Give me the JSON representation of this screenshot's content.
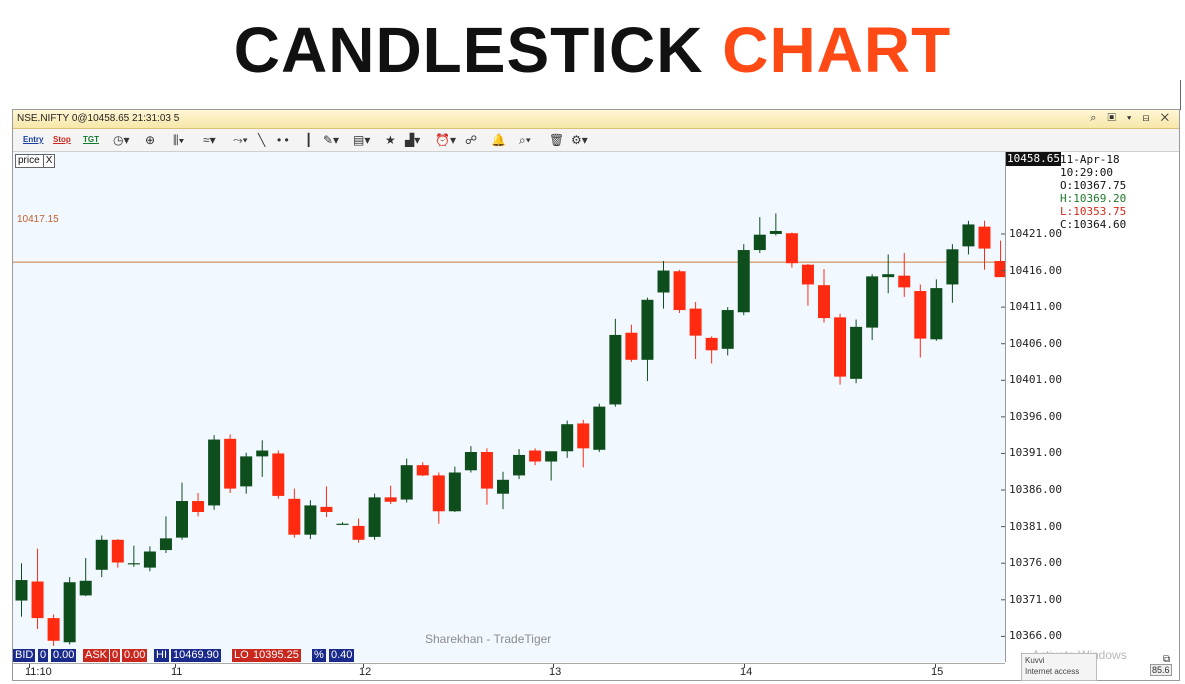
{
  "headline": {
    "word1": "CANDLESTICK",
    "word2": "CHART"
  },
  "window": {
    "title": "NSE.NIFTY 0@10458.65 21:31:03 5",
    "controls": "⌕ ▣ ▾ ⊟ ✕"
  },
  "toolbar": {
    "entry": "Entry",
    "stop": "Stop",
    "tgt": "TGT",
    "icons": [
      "clock-icon",
      "crosshair-icon",
      "candle-type-icon",
      "indicator-icon",
      "trend-icon",
      "line-icon",
      "dots-icon",
      "vertical-line-icon",
      "draw-icon",
      "template-icon",
      "star-icon",
      "chart-type-icon",
      "alarm-icon",
      "scanner-icon",
      "bell-icon",
      "zoom-icon",
      "delete-icon",
      "settings-icon"
    ]
  },
  "price_toggle": {
    "label": "price",
    "close": "X"
  },
  "reference_line": {
    "label": "10417.15",
    "color": "#c87a3a"
  },
  "current_price": "10458.65",
  "ohlc_panel": {
    "date": "11-Apr-18",
    "time": "10:29:00",
    "open": "O:10367.75",
    "high": "H:10369.20",
    "low": "L:10353.75",
    "close": "C:10364.60"
  },
  "status_bar": {
    "bid_label": "BID",
    "bid_qty": "0",
    "bid_price": "0.00",
    "ask_label": "ASK",
    "ask_qty": "0",
    "ask_price": "0.00",
    "hi_label": "HI",
    "hi_value": "10469.90",
    "lo_label": "LO",
    "lo_value": "10395.25",
    "pct_label": "%",
    "pct_value": "0.40"
  },
  "watermark": "Sharekhan - TradeTiger",
  "os_watermark": "Activate Windows",
  "notification": {
    "line1": "Kuvvi",
    "line2": "Internet access"
  },
  "corner_value": "85.6",
  "colors": {
    "up": "#0e4d1c",
    "down": "#ff2a10",
    "plot_bg": "#f1f8ff",
    "ref_line": "#c87a3a"
  },
  "chart_data": {
    "type": "candlestick",
    "title": "",
    "xlabel": "",
    "ylabel": "",
    "x_ticks": [
      "11:10",
      "11",
      "12",
      "13",
      "14",
      "15"
    ],
    "y_ticks": [
      10366.0,
      10371.0,
      10376.0,
      10381.0,
      10386.0,
      10391.0,
      10396.0,
      10401.0,
      10406.0,
      10411.0,
      10416.0,
      10421.0
    ],
    "y_tick_labels": [
      "10366.00",
      "10371.00",
      "10376.00",
      "10381.00",
      "10386.00",
      "10391.00",
      "10396.00",
      "10401.00",
      "10406.00",
      "10411.00",
      "10416.00",
      "10421.00"
    ],
    "ylim": [
      10362.5,
      10432.2
    ],
    "grid": false,
    "reference_line": 10417.15,
    "candles": [
      {
        "o": 10370.9,
        "h": 10376.0,
        "l": 10368.7,
        "c": 10373.7
      },
      {
        "o": 10373.5,
        "h": 10378.0,
        "l": 10367.0,
        "c": 10368.5
      },
      {
        "o": 10368.5,
        "h": 10369.0,
        "l": 10364.7,
        "c": 10365.4
      },
      {
        "o": 10365.2,
        "h": 10374.1,
        "l": 10364.9,
        "c": 10373.4
      },
      {
        "o": 10371.6,
        "h": 10376.7,
        "l": 10371.5,
        "c": 10373.6
      },
      {
        "o": 10375.1,
        "h": 10379.8,
        "l": 10374.1,
        "c": 10379.2
      },
      {
        "o": 10379.2,
        "h": 10379.3,
        "l": 10375.4,
        "c": 10376.1
      },
      {
        "o": 10376.0,
        "h": 10378.4,
        "l": 10375.5,
        "c": 10376.0
      },
      {
        "o": 10375.4,
        "h": 10378.3,
        "l": 10374.9,
        "c": 10377.6
      },
      {
        "o": 10377.8,
        "h": 10382.4,
        "l": 10377.4,
        "c": 10379.4
      },
      {
        "o": 10379.5,
        "h": 10387.0,
        "l": 10379.2,
        "c": 10384.5
      },
      {
        "o": 10384.5,
        "h": 10385.6,
        "l": 10382.4,
        "c": 10383.0
      },
      {
        "o": 10383.9,
        "h": 10393.5,
        "l": 10383.3,
        "c": 10392.9
      },
      {
        "o": 10393.0,
        "h": 10393.6,
        "l": 10385.6,
        "c": 10386.2
      },
      {
        "o": 10386.5,
        "h": 10391.1,
        "l": 10385.5,
        "c": 10390.6
      },
      {
        "o": 10390.6,
        "h": 10392.8,
        "l": 10387.8,
        "c": 10391.4
      },
      {
        "o": 10391.0,
        "h": 10391.4,
        "l": 10384.8,
        "c": 10385.2
      },
      {
        "o": 10384.8,
        "h": 10386.2,
        "l": 10379.5,
        "c": 10379.9
      },
      {
        "o": 10379.9,
        "h": 10384.6,
        "l": 10379.3,
        "c": 10383.9
      },
      {
        "o": 10383.7,
        "h": 10386.5,
        "l": 10382.3,
        "c": 10383.0
      },
      {
        "o": 10381.4,
        "h": 10381.6,
        "l": 10381.3,
        "c": 10381.4
      },
      {
        "o": 10381.1,
        "h": 10382.1,
        "l": 10378.8,
        "c": 10379.2
      },
      {
        "o": 10379.6,
        "h": 10385.5,
        "l": 10379.2,
        "c": 10385.0
      },
      {
        "o": 10385.0,
        "h": 10386.6,
        "l": 10384.1,
        "c": 10384.4
      },
      {
        "o": 10384.7,
        "h": 10390.3,
        "l": 10384.3,
        "c": 10389.4
      },
      {
        "o": 10389.4,
        "h": 10389.8,
        "l": 10387.9,
        "c": 10388.0
      },
      {
        "o": 10388.0,
        "h": 10388.4,
        "l": 10381.4,
        "c": 10383.1
      },
      {
        "o": 10383.1,
        "h": 10389.2,
        "l": 10383.0,
        "c": 10388.4
      },
      {
        "o": 10388.7,
        "h": 10392.0,
        "l": 10388.4,
        "c": 10391.2
      },
      {
        "o": 10391.2,
        "h": 10391.7,
        "l": 10384.0,
        "c": 10386.2
      },
      {
        "o": 10385.5,
        "h": 10388.5,
        "l": 10383.4,
        "c": 10387.4
      },
      {
        "o": 10388.0,
        "h": 10391.6,
        "l": 10387.5,
        "c": 10390.8
      },
      {
        "o": 10391.4,
        "h": 10391.7,
        "l": 10389.4,
        "c": 10389.9
      },
      {
        "o": 10389.9,
        "h": 10391.1,
        "l": 10387.3,
        "c": 10391.3
      },
      {
        "o": 10391.3,
        "h": 10395.5,
        "l": 10390.4,
        "c": 10395.0
      },
      {
        "o": 10395.1,
        "h": 10395.6,
        "l": 10389.1,
        "c": 10391.7
      },
      {
        "o": 10391.5,
        "h": 10397.8,
        "l": 10391.2,
        "c": 10397.4
      },
      {
        "o": 10397.7,
        "h": 10409.4,
        "l": 10397.4,
        "c": 10407.2
      },
      {
        "o": 10407.5,
        "h": 10408.6,
        "l": 10403.5,
        "c": 10403.8
      },
      {
        "o": 10403.8,
        "h": 10412.3,
        "l": 10400.9,
        "c": 10412.0
      },
      {
        "o": 10413.0,
        "h": 10417.3,
        "l": 10410.8,
        "c": 10416.0
      },
      {
        "o": 10415.9,
        "h": 10416.1,
        "l": 10410.2,
        "c": 10410.6
      },
      {
        "o": 10410.8,
        "h": 10411.7,
        "l": 10403.9,
        "c": 10407.1
      },
      {
        "o": 10406.8,
        "h": 10407.0,
        "l": 10403.3,
        "c": 10405.1
      },
      {
        "o": 10405.3,
        "h": 10411.0,
        "l": 10404.4,
        "c": 10410.6
      },
      {
        "o": 10410.3,
        "h": 10419.6,
        "l": 10409.9,
        "c": 10418.8
      },
      {
        "o": 10418.8,
        "h": 10423.3,
        "l": 10418.4,
        "c": 10420.9
      },
      {
        "o": 10421.0,
        "h": 10423.8,
        "l": 10420.8,
        "c": 10421.4
      },
      {
        "o": 10421.1,
        "h": 10421.2,
        "l": 10416.4,
        "c": 10417.0
      },
      {
        "o": 10416.8,
        "h": 10416.9,
        "l": 10411.2,
        "c": 10414.1
      },
      {
        "o": 10414.0,
        "h": 10416.2,
        "l": 10408.9,
        "c": 10409.5
      },
      {
        "o": 10409.6,
        "h": 10410.1,
        "l": 10400.4,
        "c": 10401.5
      },
      {
        "o": 10401.2,
        "h": 10409.3,
        "l": 10400.6,
        "c": 10408.3
      },
      {
        "o": 10408.2,
        "h": 10415.5,
        "l": 10406.5,
        "c": 10415.2
      },
      {
        "o": 10415.1,
        "h": 10418.2,
        "l": 10412.9,
        "c": 10415.5
      },
      {
        "o": 10415.3,
        "h": 10418.4,
        "l": 10412.4,
        "c": 10413.7
      },
      {
        "o": 10413.2,
        "h": 10414.1,
        "l": 10404.1,
        "c": 10406.7
      },
      {
        "o": 10406.6,
        "h": 10414.8,
        "l": 10406.4,
        "c": 10413.6
      },
      {
        "o": 10414.1,
        "h": 10419.6,
        "l": 10411.6,
        "c": 10418.9
      },
      {
        "o": 10419.3,
        "h": 10422.8,
        "l": 10418.2,
        "c": 10422.3
      },
      {
        "o": 10422.0,
        "h": 10422.8,
        "l": 10416.1,
        "c": 10419.0
      },
      {
        "o": 10417.3,
        "h": 10420.1,
        "l": 10415.5,
        "c": 10415.1
      }
    ]
  }
}
